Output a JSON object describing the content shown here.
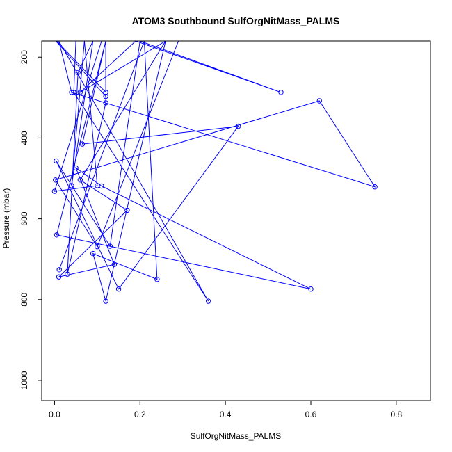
{
  "chart_data": {
    "type": "line",
    "title": "ATOM3 Southbound SulfOrgNitMass_PALMS",
    "xlabel": "SulfOrgNitMass_PALMS",
    "ylabel": "Pressure (mbar)",
    "xlim": [
      -0.03,
      0.88
    ],
    "ylim": [
      1050,
      160
    ],
    "xticks": [
      0.0,
      0.2,
      0.4,
      0.6,
      0.8
    ],
    "xtick_labels": [
      "0.0",
      "0.2",
      "0.4",
      "0.6",
      "0.8"
    ],
    "yticks": [
      200,
      400,
      600,
      800,
      1000
    ],
    "ytick_labels": [
      "200",
      "400",
      "600",
      "800",
      "1000"
    ],
    "grid": false,
    "legend": "none",
    "color": "#0000ff",
    "series": [
      {
        "x": [
          0.011,
          0.21,
          0.24,
          0.09,
          0.12,
          0.26,
          0.06,
          0.19,
          0.53,
          0.2,
          0.13,
          0.004,
          0.15,
          0.43,
          0.065,
          0.12,
          0.005,
          0.6,
          0.11,
          0.05,
          0.14,
          0.01,
          0.17,
          0.06,
          0.26,
          0.29,
          0.1,
          0.002,
          0.62,
          0.75,
          0.04,
          0.01,
          0.36,
          0.045,
          0.05,
          0.003,
          0.12,
          0.12,
          0.03,
          0.055,
          0.09,
          0.04,
          0.07,
          0.1,
          0.0,
          0.11,
          0.12,
          0.12,
          0.005
        ],
        "y": [
          726,
          160,
          750,
          686,
          804,
          160,
          287,
          160,
          287,
          160,
          668,
          457,
          774,
          371,
          415,
          160,
          640,
          774,
          519,
          474,
          713,
          744,
          579,
          504,
          160,
          160,
          669,
          504,
          308,
          521,
          287,
          160,
          804,
          287,
          160,
          160,
          297,
          313,
          737,
          238,
          160,
          518,
          160,
          518,
          532,
          160,
          160,
          287,
          160
        ]
      }
    ]
  }
}
